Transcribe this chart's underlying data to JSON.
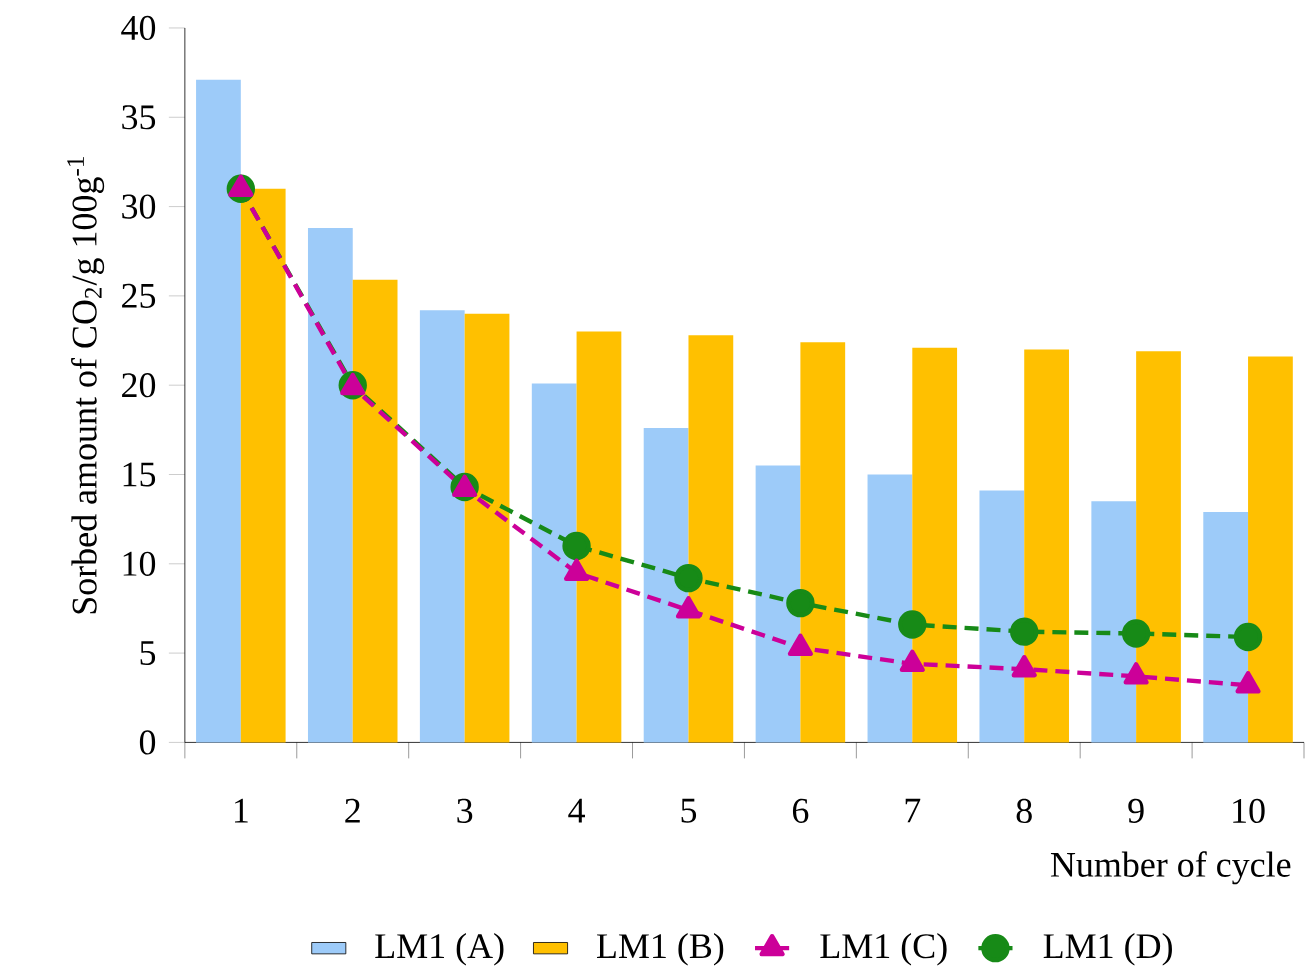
{
  "chart_data": {
    "type": "bar",
    "xlabel": "Number of cycle",
    "ylabel": "Sorbed amount of CO$_{2}$/g 100g$^{-1}$",
    "categories": [
      "1",
      "2",
      "3",
      "4",
      "5",
      "6",
      "7",
      "8",
      "9",
      "10"
    ],
    "series": [
      {
        "name": "LM1 (A)",
        "color": "#9dcbf9",
        "values": [
          37.1,
          28.8,
          24.2,
          20.1,
          17.6,
          15.5,
          15.0,
          14.1,
          13.5,
          12.9
        ]
      },
      {
        "name": "LM1 (B)",
        "color": "#ffc000",
        "values": [
          31.0,
          25.9,
          24.0,
          23.0,
          22.8,
          22.4,
          22.1,
          22.0,
          21.9,
          21.6
        ]
      },
      {
        "name": "LM1 (C)",
        "type": "line",
        "color": "#cc0099",
        "marker": "triangle",
        "line_style": "dashed",
        "values": [
          31.0,
          19.9,
          14.2,
          9.5,
          7.4,
          5.3,
          4.4,
          4.1,
          3.7,
          3.2
        ]
      },
      {
        "name": "LM1 (D)",
        "type": "line",
        "color": "#178a17",
        "marker": "circle",
        "line_style": "dashed",
        "values": [
          31.0,
          20.0,
          14.3,
          11.0,
          9.2,
          7.8,
          6.6,
          6.2,
          6.1,
          5.9
        ]
      }
    ],
    "ylim": [
      0,
      40
    ],
    "yticks": [
      0,
      5,
      10,
      15,
      20,
      25,
      30,
      35,
      40
    ],
    "grid": false,
    "legend": "bottom"
  }
}
